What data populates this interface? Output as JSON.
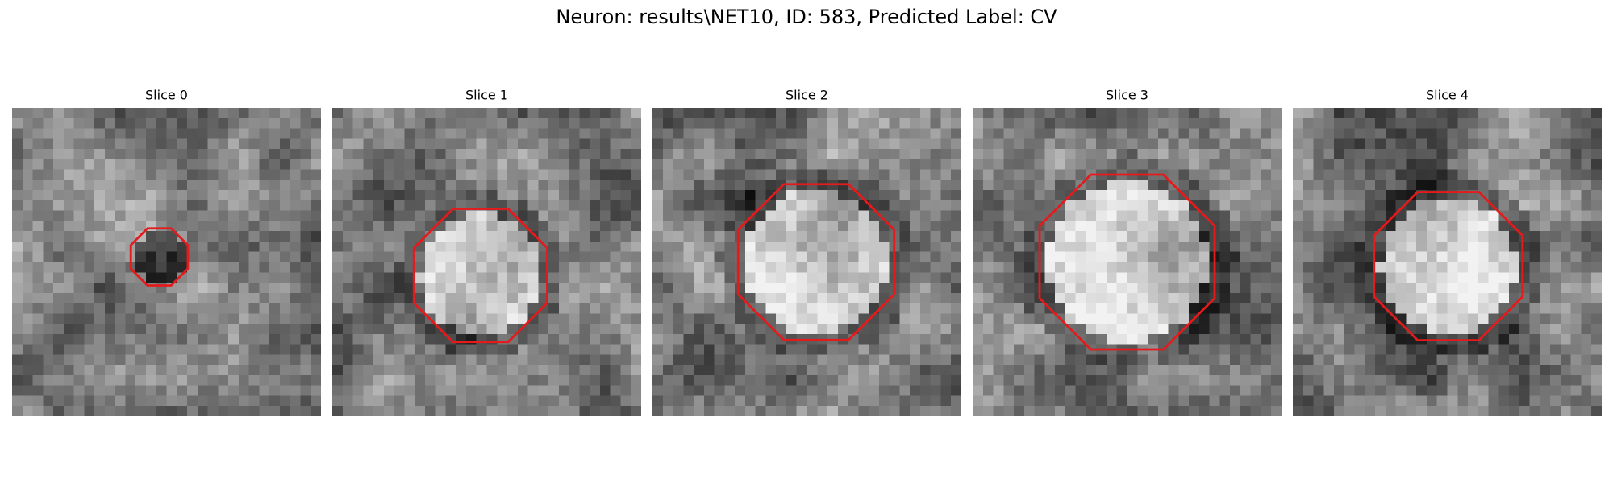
{
  "title": "Neuron: results\\NET10, ID: 583, Predicted Label: CV",
  "panels": [
    {
      "title": "Slice 0"
    },
    {
      "title": "Slice 1"
    },
    {
      "title": "Slice 2"
    },
    {
      "title": "Slice 3"
    },
    {
      "title": "Slice 4"
    }
  ]
}
